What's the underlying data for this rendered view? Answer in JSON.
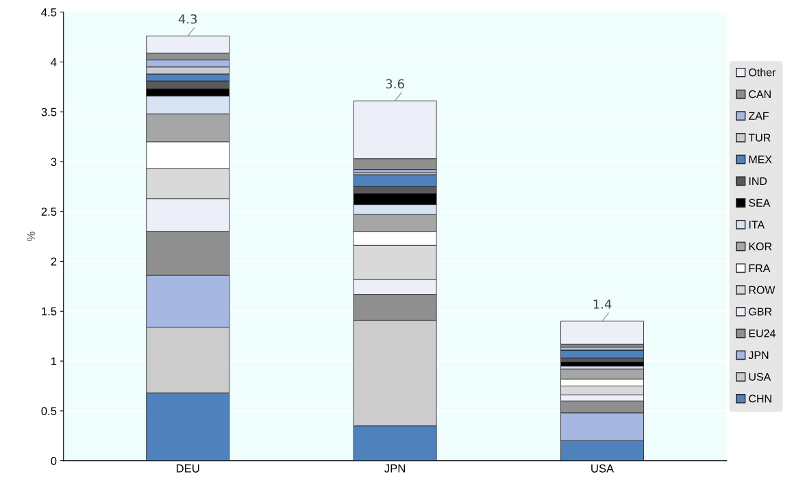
{
  "chart_data": {
    "type": "bar",
    "stacked": true,
    "ylabel": "%",
    "categories": [
      "DEU",
      "JPN",
      "USA"
    ],
    "ylim": [
      0,
      4.5
    ],
    "yticks": [
      0,
      0.5,
      1,
      1.5,
      2,
      2.5,
      3,
      3.5,
      4,
      4.5
    ],
    "grid": "y",
    "legend": "right",
    "totals": [
      "4.3",
      "3.6",
      "1.4"
    ],
    "series": [
      {
        "name": "CHN",
        "color": "#4f81bd",
        "values": [
          0.68,
          0.35,
          0.2
        ]
      },
      {
        "name": "USA",
        "color": "#cccccc",
        "values": [
          0.66,
          1.06,
          0
        ]
      },
      {
        "name": "JPN",
        "color": "#a6b8e2",
        "values": [
          0.52,
          0,
          0.28
        ]
      },
      {
        "name": "EU24",
        "color": "#8f8f8f",
        "values": [
          0.44,
          0.26,
          0.12
        ]
      },
      {
        "name": "GBR",
        "color": "#eceff8",
        "values": [
          0.33,
          0.15,
          0.06
        ]
      },
      {
        "name": "ROW",
        "color": "#d9d9d9",
        "values": [
          0.3,
          0.34,
          0.09
        ]
      },
      {
        "name": "FRA",
        "color": "#ffffff",
        "values": [
          0.27,
          0.14,
          0.07
        ]
      },
      {
        "name": "KOR",
        "color": "#a6a6a6",
        "values": [
          0.28,
          0.17,
          0.1
        ]
      },
      {
        "name": "ITA",
        "color": "#d5e3f4",
        "values": [
          0.18,
          0.1,
          0.03
        ]
      },
      {
        "name": "SEA",
        "color": "#000000",
        "values": [
          0.07,
          0.11,
          0.04
        ]
      },
      {
        "name": "IND",
        "color": "#595959",
        "values": [
          0.08,
          0.07,
          0.04
        ]
      },
      {
        "name": "MEX",
        "color": "#4f81bd",
        "values": [
          0.07,
          0.12,
          0.08
        ]
      },
      {
        "name": "TUR",
        "color": "#cccccc",
        "values": [
          0.07,
          0.02,
          0
        ]
      },
      {
        "name": "ZAF",
        "color": "#a6b8e2",
        "values": [
          0.07,
          0.03,
          0.03
        ]
      },
      {
        "name": "CAN",
        "color": "#8f8f8f",
        "values": [
          0.07,
          0.11,
          0.03
        ]
      },
      {
        "name": "Other",
        "color": "#eceff8",
        "values": [
          0.17,
          0.58,
          0.23
        ]
      }
    ]
  }
}
